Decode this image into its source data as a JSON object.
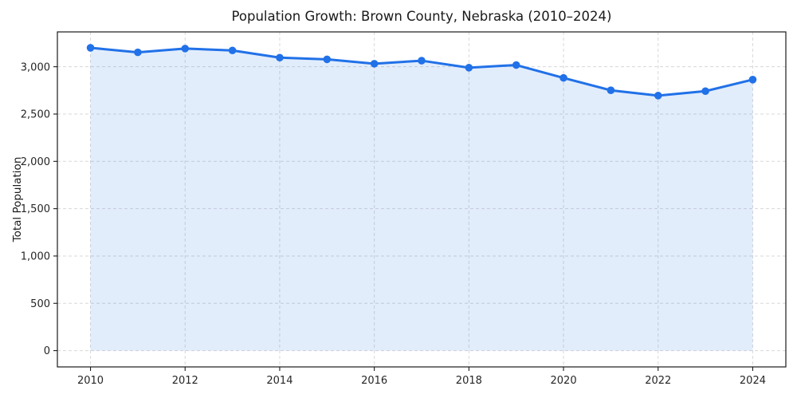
{
  "chart_data": {
    "type": "line",
    "title": "Population Growth: Brown County, Nebraska (2010–2024)",
    "xlabel": "",
    "ylabel": "Total Population",
    "x": [
      2010,
      2011,
      2012,
      2013,
      2014,
      2015,
      2016,
      2017,
      2018,
      2019,
      2020,
      2021,
      2022,
      2023,
      2024
    ],
    "series": [
      {
        "name": "Total Population",
        "values": [
          3200,
          3152,
          3192,
          3172,
          3096,
          3078,
          3032,
          3064,
          2990,
          3018,
          2882,
          2751,
          2695,
          2742,
          2864
        ]
      }
    ],
    "x_ticks": [
      2010,
      2012,
      2014,
      2016,
      2018,
      2020,
      2022,
      2024
    ],
    "y_ticks": [
      0,
      500,
      1000,
      1500,
      2000,
      2500,
      3000
    ],
    "xlim": [
      2009.3,
      2024.7
    ],
    "ylim": [
      -172,
      3368
    ],
    "grid": true,
    "grid_style": "dashed",
    "legend_position": "none",
    "marker": "circle",
    "fill_to_zero": true,
    "colors": {
      "line": "#2171e8",
      "marker": "#2171e8",
      "fill": "#2171e8",
      "fill_opacity": 0.13,
      "grid": "#d8d8d8",
      "axis": "#1a1a1a",
      "tick_label": "#262626",
      "background": "#ffffff"
    }
  }
}
